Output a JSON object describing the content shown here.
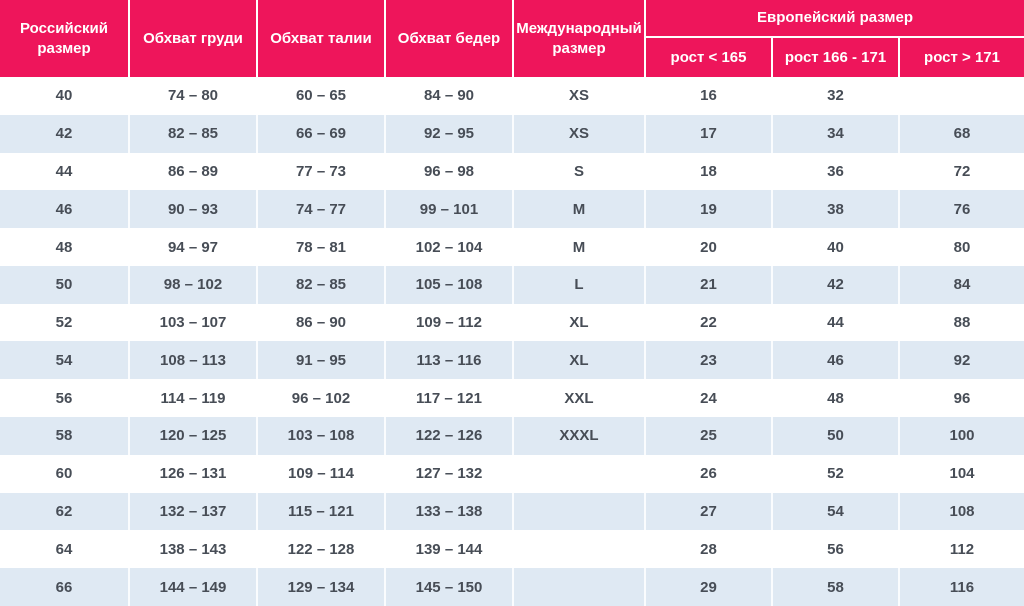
{
  "chart_data": {
    "type": "table",
    "header": {
      "col_russian_size": "Российский размер",
      "col_chest": "Обхват груди",
      "col_waist": "Обхват талии",
      "col_hips": "Обхват бедер",
      "col_international": "Международный размер",
      "group_european": "Европейский размер",
      "sub_height_lt_165": "рост < 165",
      "sub_height_166_171": "рост 166 - 171",
      "sub_height_gt_171": "рост > 171"
    },
    "rows": [
      [
        "40",
        "74 – 80",
        "60 – 65",
        "84 – 90",
        "XS",
        "16",
        "32",
        ""
      ],
      [
        "42",
        "82 – 85",
        "66 – 69",
        "92 – 95",
        "XS",
        "17",
        "34",
        "68"
      ],
      [
        "44",
        "86 – 89",
        "77 – 73",
        "96 – 98",
        "S",
        "18",
        "36",
        "72"
      ],
      [
        "46",
        "90 – 93",
        "74 – 77",
        "99 – 101",
        "M",
        "19",
        "38",
        "76"
      ],
      [
        "48",
        "94 – 97",
        "78 – 81",
        "102 – 104",
        "M",
        "20",
        "40",
        "80"
      ],
      [
        "50",
        "98 – 102",
        "82 – 85",
        "105 – 108",
        "L",
        "21",
        "42",
        "84"
      ],
      [
        "52",
        "103 – 107",
        "86 – 90",
        "109 – 112",
        "XL",
        "22",
        "44",
        "88"
      ],
      [
        "54",
        "108 – 113",
        "91 – 95",
        "113 – 116",
        "XL",
        "23",
        "46",
        "92"
      ],
      [
        "56",
        "114 – 119",
        "96 – 102",
        "117 – 121",
        "XXL",
        "24",
        "48",
        "96"
      ],
      [
        "58",
        "120 – 125",
        "103 – 108",
        "122 – 126",
        "XXXL",
        "25",
        "50",
        "100"
      ],
      [
        "60",
        "126 – 131",
        "109 – 114",
        "127 – 132",
        "",
        "26",
        "52",
        "104"
      ],
      [
        "62",
        "132 – 137",
        "115 – 121",
        "133 – 138",
        "",
        "27",
        "54",
        "108"
      ],
      [
        "64",
        "138 – 143",
        "122 – 128",
        "139 – 144",
        "",
        "28",
        "56",
        "112"
      ],
      [
        "66",
        "144 – 149",
        "129 – 134",
        "145 – 150",
        "",
        "29",
        "58",
        "116"
      ]
    ],
    "layout": {
      "striped": true,
      "stripe_rows": "even"
    }
  },
  "colors": {
    "header_bg": "#ee155b",
    "header_text": "#ffffff",
    "stripe_bg": "#dfe9f3",
    "cell_text": "#474d56",
    "divider": "#ffffff"
  }
}
